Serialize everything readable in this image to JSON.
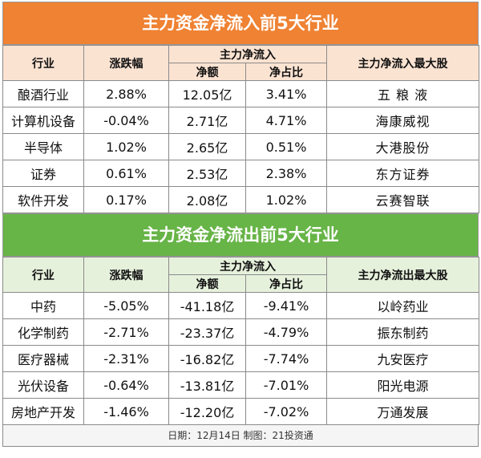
{
  "inflow": {
    "title": "主力资金净流入前5大行业",
    "headers": {
      "industry": "行业",
      "change": "涨跌幅",
      "group": "主力净流入",
      "net": "净额",
      "ratio": "净占比",
      "top_stock": "主力净流入最大股"
    },
    "rows": [
      {
        "industry": "酿酒行业",
        "change": "2.88%",
        "net": "12.05亿",
        "ratio": "3.41%",
        "stock": "五 粮 液"
      },
      {
        "industry": "计算机设备",
        "change": "-0.04%",
        "net": "2.71亿",
        "ratio": "4.71%",
        "stock": "海康威视"
      },
      {
        "industry": "半导体",
        "change": "1.02%",
        "net": "2.65亿",
        "ratio": "0.51%",
        "stock": "大港股份"
      },
      {
        "industry": "证券",
        "change": "0.61%",
        "net": "2.53亿",
        "ratio": "2.38%",
        "stock": "东方证券"
      },
      {
        "industry": "软件开发",
        "change": "0.17%",
        "net": "2.08亿",
        "ratio": "1.02%",
        "stock": "云赛智联"
      }
    ]
  },
  "outflow": {
    "title": "主力资金净流出前5大行业",
    "headers": {
      "industry": "行业",
      "change": "涨跌幅",
      "group": "主力净流入",
      "net": "净额",
      "ratio": "净占比",
      "top_stock": "主力净流出最大股"
    },
    "rows": [
      {
        "industry": "中药",
        "change": "-5.05%",
        "net": "-41.18亿",
        "ratio": "-9.41%",
        "stock": "以岭药业"
      },
      {
        "industry": "化学制药",
        "change": "-2.71%",
        "net": "-23.37亿",
        "ratio": "-4.79%",
        "stock": "振东制药"
      },
      {
        "industry": "医疗器械",
        "change": "-2.31%",
        "net": "-16.82亿",
        "ratio": "-7.74%",
        "stock": "九安医疗"
      },
      {
        "industry": "光伏设备",
        "change": "-0.64%",
        "net": "-13.81亿",
        "ratio": "-7.01%",
        "stock": "阳光电源"
      },
      {
        "industry": "房地产开发",
        "change": "-1.46%",
        "net": "-12.20亿",
        "ratio": "-7.02%",
        "stock": "万通发展"
      }
    ]
  },
  "footer": "日期：12月14日 制图：21投资通"
}
